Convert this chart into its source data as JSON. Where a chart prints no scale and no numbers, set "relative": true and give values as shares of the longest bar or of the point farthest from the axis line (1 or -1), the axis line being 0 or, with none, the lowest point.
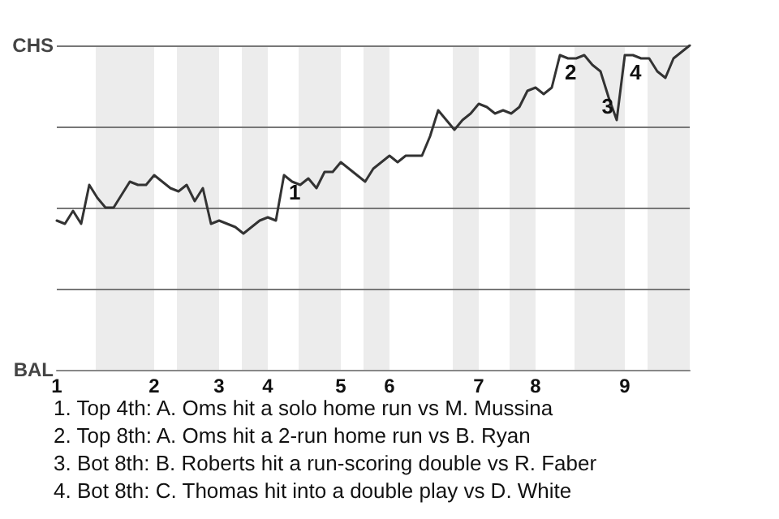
{
  "chart_data": {
    "type": "line",
    "relative": true,
    "categories": [
      "1",
      null,
      null,
      null,
      null,
      null,
      null,
      null,
      null,
      null,
      null,
      null,
      "2",
      null,
      null,
      null,
      null,
      null,
      null,
      null,
      "3",
      null,
      null,
      null,
      null,
      null,
      "4",
      null,
      null,
      null,
      null,
      null,
      null,
      null,
      null,
      "5",
      null,
      null,
      null,
      null,
      null,
      "6",
      null,
      null,
      null,
      null,
      null,
      null,
      null,
      null,
      null,
      null,
      "7",
      null,
      null,
      null,
      null,
      null,
      null,
      "8",
      null,
      null,
      null,
      null,
      null,
      null,
      null,
      null,
      null,
      null,
      "9",
      null,
      null,
      null,
      null,
      null,
      null,
      null,
      null
    ],
    "values": [
      0.46,
      0.45,
      0.49,
      0.45,
      0.57,
      0.53,
      0.5,
      0.5,
      0.54,
      0.58,
      0.57,
      0.57,
      0.6,
      0.58,
      0.56,
      0.55,
      0.57,
      0.52,
      0.56,
      0.45,
      0.46,
      0.45,
      0.44,
      0.42,
      0.44,
      0.46,
      0.47,
      0.46,
      0.6,
      0.58,
      0.57,
      0.59,
      0.56,
      0.61,
      0.61,
      0.64,
      0.62,
      0.6,
      0.58,
      0.62,
      0.64,
      0.66,
      0.64,
      0.66,
      0.66,
      0.66,
      0.72,
      0.8,
      0.77,
      0.74,
      0.77,
      0.79,
      0.82,
      0.81,
      0.79,
      0.8,
      0.79,
      0.81,
      0.86,
      0.87,
      0.85,
      0.87,
      0.97,
      0.96,
      0.96,
      0.97,
      0.94,
      0.92,
      0.84,
      0.77,
      0.97,
      0.97,
      0.96,
      0.96,
      0.92,
      0.9,
      0.96,
      0.98,
      1
    ],
    "color": "#333333",
    "marker": "none",
    "grid": "y",
    "annotations": [
      "CHS",
      "BAL",
      {
        "text": "1",
        "y": 0.6
      },
      {
        "text": "2",
        "y": 0.97
      },
      {
        "text": "3",
        "y": 0.77
      },
      {
        "text": "4",
        "y": 0.97
      },
      "1. Top 4th: A. Oms hit a solo home run vs M. Mussina",
      "2. Top 8th: A. Oms hit a 2-run home run vs B. Ryan",
      "3. Bot 8th: B. Roberts hit a run-scoring double vs R. Faber",
      "4. Bot 8th: C. Thomas hit into a double play vs D. White"
    ]
  }
}
